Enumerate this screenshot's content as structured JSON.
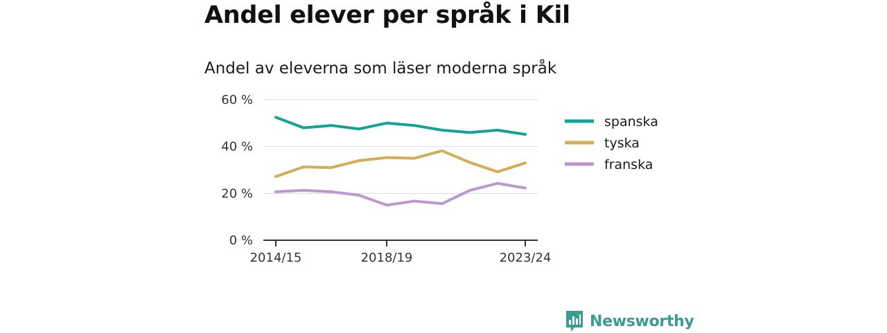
{
  "title": "Andel elever per språk i Kil",
  "subtitle": "Andel av eleverna som läser moderna språk",
  "brand": {
    "name": "Newsworthy"
  },
  "colors": {
    "spanska": "#13a296",
    "tyska": "#d4ad55",
    "franska": "#be98cc",
    "brand": "#3a9b93"
  },
  "chart_data": {
    "type": "line",
    "x": [
      "2014/15",
      "2015/16",
      "2016/17",
      "2017/18",
      "2018/19",
      "2019/20",
      "2020/21",
      "2021/22",
      "2022/23",
      "2023/24"
    ],
    "x_tick_labels": [
      "2014/15",
      "2018/19",
      "2023/24"
    ],
    "y_tick_labels": [
      "0 %",
      "20 %",
      "40 %",
      "60 %"
    ],
    "ylim": [
      0,
      60
    ],
    "grid": true,
    "legend_position": "right",
    "series": [
      {
        "name": "spanska",
        "color": "#13a296",
        "values": [
          52.5,
          48,
          49,
          47.5,
          50,
          49,
          47,
          46,
          47,
          45.2
        ]
      },
      {
        "name": "tyska",
        "color": "#d4ad55",
        "values": [
          27.2,
          31.3,
          31,
          34,
          35.3,
          35,
          38.2,
          33.2,
          29.2,
          33
        ]
      },
      {
        "name": "franska",
        "color": "#be98cc",
        "values": [
          20.7,
          21.3,
          20.7,
          19.2,
          15,
          16.7,
          15.6,
          21.3,
          24.3,
          22.3
        ]
      }
    ]
  }
}
